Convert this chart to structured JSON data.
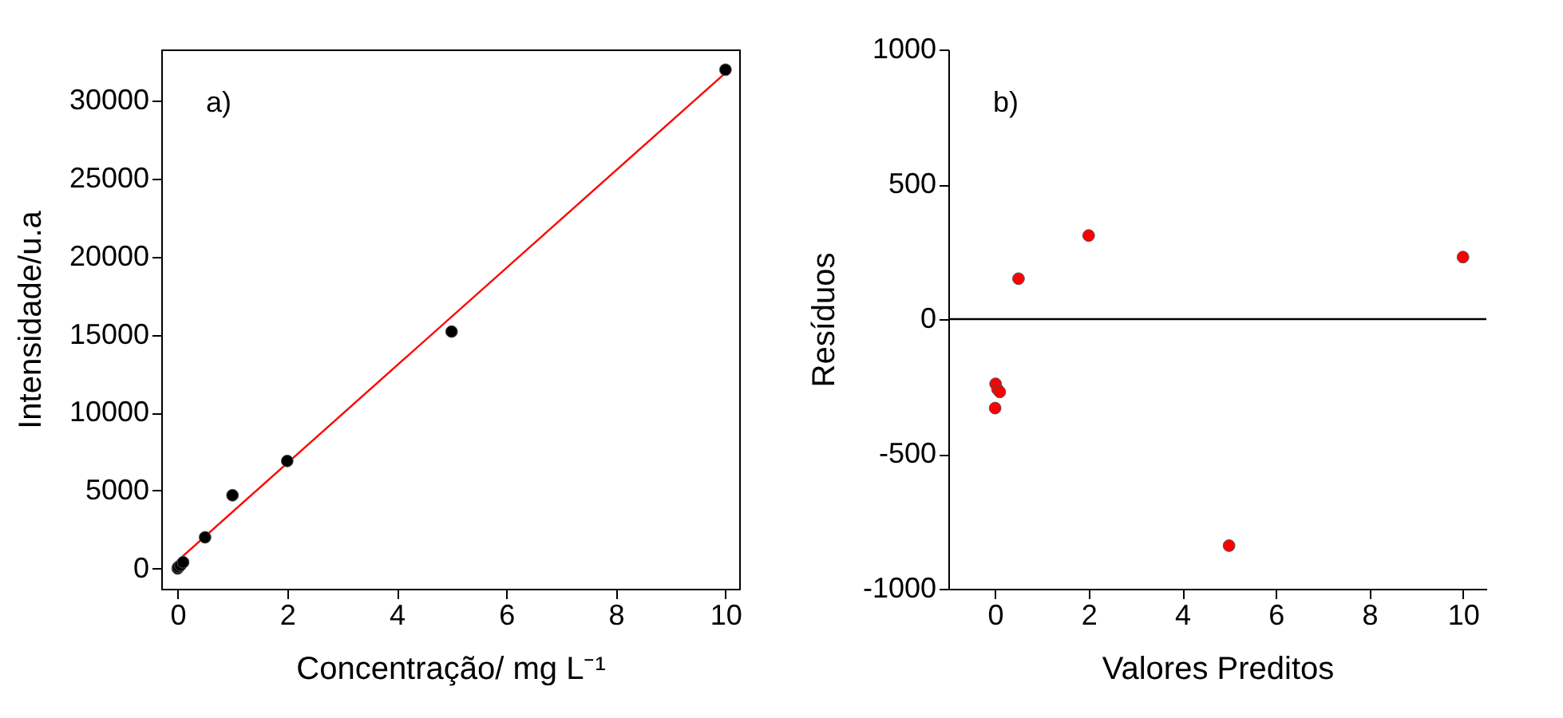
{
  "chart_data": [
    {
      "type": "scatter",
      "xlabel": "Concentração/ mg L⁻¹",
      "ylabel": "Intensidade/u.a",
      "annotations": [
        "a)"
      ],
      "xlim": [
        -0.3,
        10.25
      ],
      "ylim": [
        -1300,
        33300
      ],
      "xticks": [
        0,
        2,
        4,
        6,
        8,
        10
      ],
      "yticks": [
        0,
        5000,
        10000,
        15000,
        20000,
        25000,
        30000
      ],
      "grid": false,
      "series": [
        {
          "color": "#000000",
          "marker": "circle",
          "x": [
            0,
            0.01,
            0.05,
            0.1,
            0.5,
            1,
            2,
            5,
            10
          ],
          "values": [
            0,
            100,
            200,
            400,
            2000,
            4700,
            6900,
            15200,
            32000
          ]
        },
        {
          "type": "line",
          "color": "#ff0000",
          "line_style": "solid",
          "marker": "none",
          "x": [
            0,
            10
          ],
          "values": [
            500,
            31800
          ]
        }
      ]
    },
    {
      "type": "scatter",
      "xlabel": "Valores Preditos",
      "ylabel": "Resíduos",
      "annotations": [
        "b)"
      ],
      "xlim": [
        -1,
        10.5
      ],
      "ylim": [
        -1000,
        1000
      ],
      "xticks": [
        0,
        2,
        4,
        6,
        8,
        10
      ],
      "yticks": [
        -1000,
        -500,
        0,
        500,
        1000
      ],
      "grid": false,
      "marker": "circle",
      "ref_lines": [
        {
          "axis": "y",
          "value": 0,
          "color": "#000000"
        }
      ],
      "series": [
        {
          "color": "#ff0000",
          "x": [
            0,
            0.01,
            0.05,
            0.1,
            0.5,
            2,
            5,
            10
          ],
          "values": [
            -330,
            -240,
            -260,
            -270,
            150,
            310,
            -840,
            230
          ]
        }
      ]
    }
  ]
}
